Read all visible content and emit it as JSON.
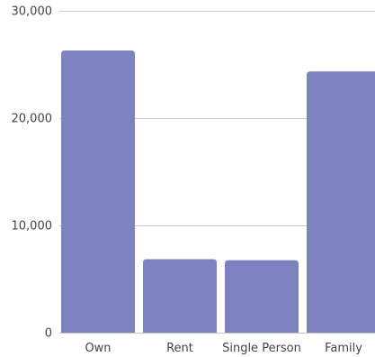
{
  "chart_data": {
    "type": "bar",
    "categories": [
      "Own",
      "Rent",
      "Single Person",
      "Family"
    ],
    "values": [
      26300,
      6850,
      6750,
      24350
    ],
    "title": "",
    "xlabel": "",
    "ylabel": "",
    "ylim": [
      0,
      30000
    ],
    "yticks": [
      0,
      10000,
      20000,
      30000
    ],
    "ytick_labels": [
      "0",
      "10,000",
      "20,000",
      "30,000"
    ],
    "grid": true,
    "legend": "none"
  },
  "colors": {
    "bar": "#7f82c0",
    "grid": "#c8c8c8",
    "text": "#444444"
  }
}
